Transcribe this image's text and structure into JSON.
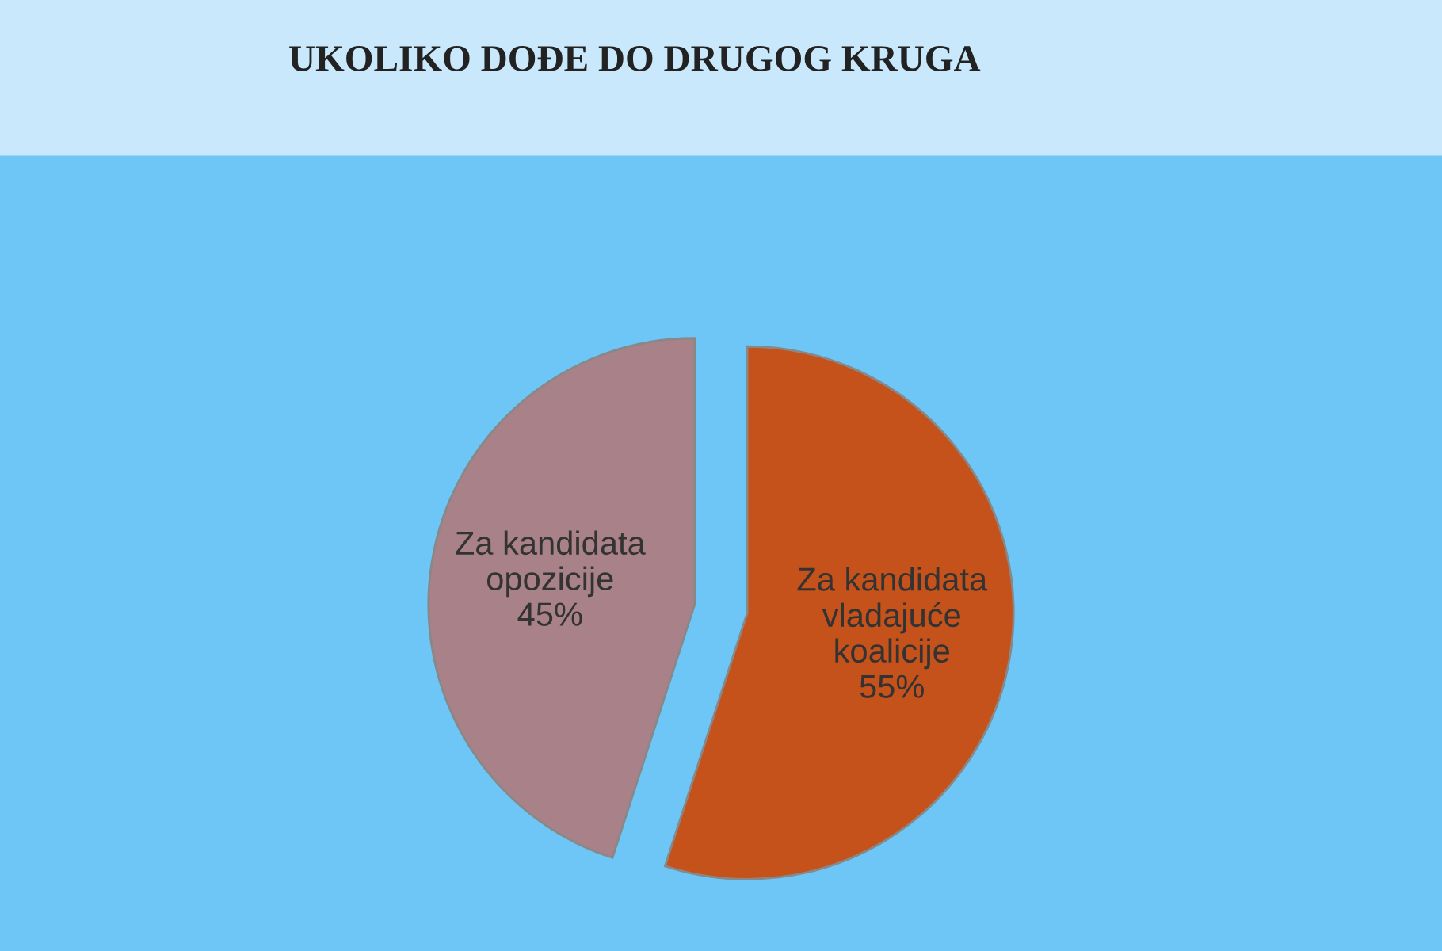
{
  "chart_data": {
    "type": "pie",
    "title": "UKOLIKO DOĐE DO DRUGOG KRUGA",
    "categories": [
      "Za kandidata\nvladajuće\nkoalicije",
      "Za kandidata\nopozicije"
    ],
    "values": [
      55,
      45
    ],
    "value_labels": [
      "55%",
      "45%"
    ],
    "colors": [
      "#c5521a",
      "#a88288"
    ],
    "legend": false
  }
}
